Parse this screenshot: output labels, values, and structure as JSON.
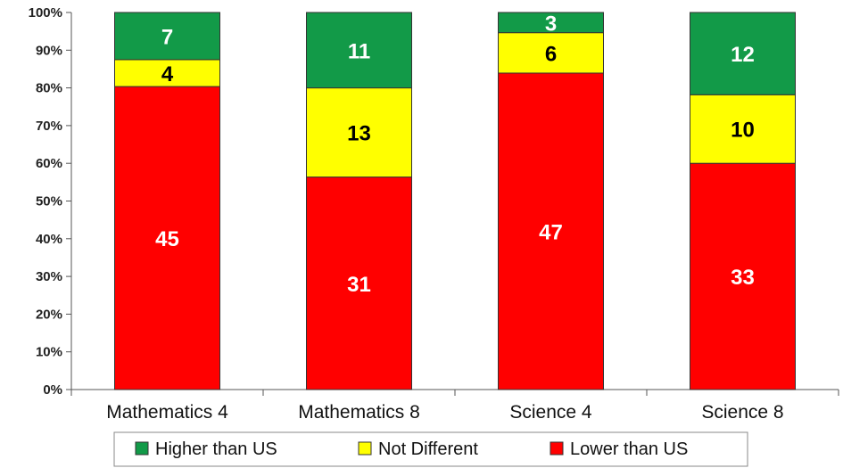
{
  "chart_data": {
    "type": "bar",
    "stacked": "percent",
    "categories": [
      "Mathematics 4",
      "Mathematics 8",
      "Science 4",
      "Science 8"
    ],
    "series": [
      {
        "name": "Lower than US",
        "color": "#ff0000",
        "label_color": "#ffffff",
        "values": [
          45,
          31,
          47,
          33
        ]
      },
      {
        "name": "Not Different",
        "color": "#ffff00",
        "label_color": "#000000",
        "values": [
          4,
          13,
          6,
          10
        ]
      },
      {
        "name": "Higher than US",
        "color": "#129a48",
        "label_color": "#ffffff",
        "values": [
          7,
          11,
          3,
          12
        ]
      }
    ],
    "ylim": [
      0,
      100
    ],
    "yticks": [
      "0%",
      "10%",
      "20%",
      "30%",
      "40%",
      "50%",
      "60%",
      "70%",
      "80%",
      "90%",
      "100%"
    ],
    "legend_order": [
      "Higher than US",
      "Not Different",
      "Lower than US"
    ],
    "legend_placement": "bottom",
    "grid": false
  }
}
